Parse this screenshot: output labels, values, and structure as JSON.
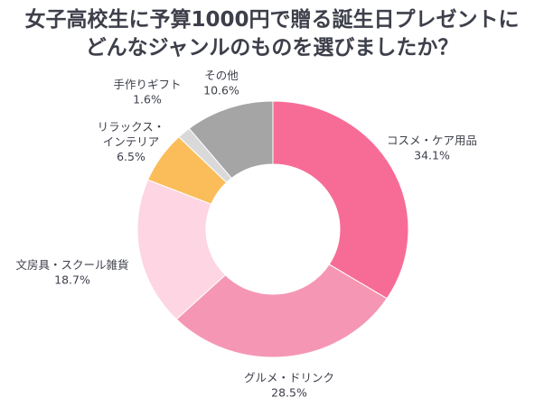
{
  "chart_data": {
    "type": "pie",
    "donut": true,
    "title": [
      "女子高校生に予算1000円で贈る誕生日プレゼントに",
      "どんなジャンルのものを選びましたか？"
    ],
    "start": "top",
    "direction": "clockwise",
    "slices": [
      {
        "label": [
          "コスメ・ケア用品"
        ],
        "value": 34.1,
        "value_label": "34.1%",
        "color": "#f76c96"
      },
      {
        "label": [
          "グルメ・ドリンク"
        ],
        "value": 28.5,
        "value_label": "28.5%",
        "color": "#f597b4"
      },
      {
        "label": [
          "文房具・スクール雑貨"
        ],
        "value": 18.7,
        "value_label": "18.7%",
        "color": "#fdd5e3"
      },
      {
        "label": [
          "リラックス・",
          "インテリア"
        ],
        "value": 6.5,
        "value_label": "6.5%",
        "color": "#fbbd5a"
      },
      {
        "label": [
          "手作りギフト"
        ],
        "value": 1.6,
        "value_label": "1.6%",
        "color": "#d9d9d9"
      },
      {
        "label": [
          "その他"
        ],
        "value": 10.6,
        "value_label": "10.6%",
        "color": "#a5a5a5"
      }
    ]
  }
}
